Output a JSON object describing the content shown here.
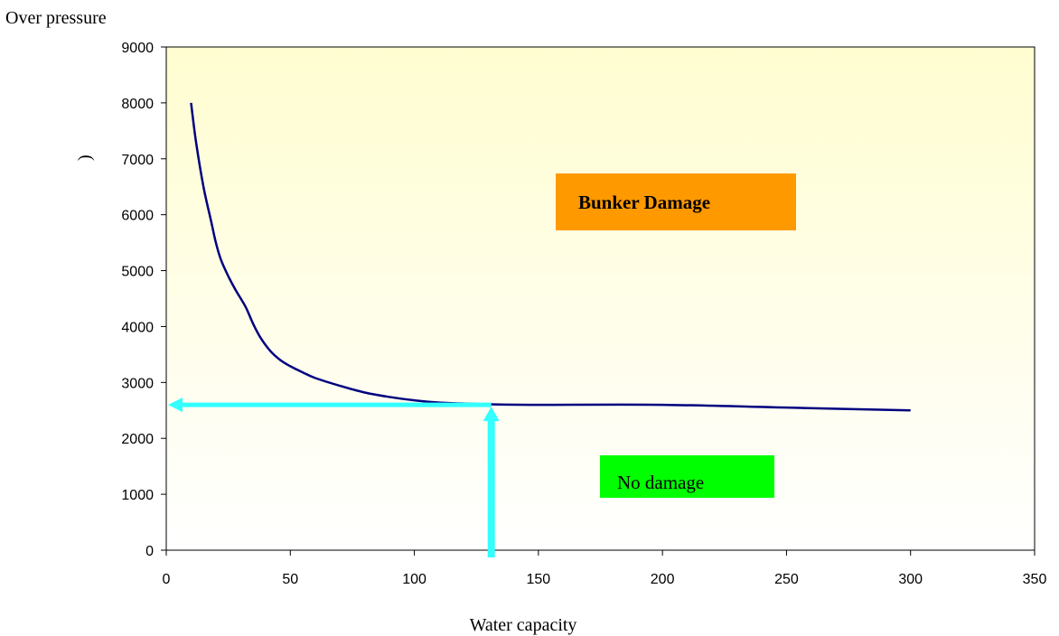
{
  "chart_data": {
    "type": "line",
    "ylabel": "Over pressure",
    "ylabel_glyph": ")",
    "xlabel": "Water capacity",
    "xlim": [
      0,
      350
    ],
    "ylim": [
      0,
      9000
    ],
    "x_ticks": [
      "0",
      "50",
      "100",
      "150",
      "200",
      "250",
      "300",
      "350"
    ],
    "y_ticks": [
      "0",
      "1000",
      "2000",
      "3000",
      "4000",
      "5000",
      "6000",
      "7000",
      "8000",
      "9000"
    ],
    "series": [
      {
        "x": [
          10,
          12,
          15,
          18,
          20,
          22,
          25,
          28,
          32,
          35,
          38,
          42,
          46,
          50,
          55,
          60,
          70,
          80,
          90,
          100,
          110,
          130,
          150,
          200,
          250,
          300
        ],
        "y": [
          8000,
          7300,
          6500,
          5900,
          5500,
          5200,
          4900,
          4650,
          4350,
          4050,
          3800,
          3560,
          3400,
          3290,
          3180,
          3080,
          2940,
          2820,
          2740,
          2680,
          2640,
          2610,
          2600,
          2600,
          2550,
          2500
        ]
      }
    ],
    "line_color": "#000080",
    "marker_color": "#33ffff",
    "marker_point": {
      "x": 131,
      "y": 2600
    },
    "regions": [
      {
        "label": "Bunker Damage",
        "color": "#ff9900"
      },
      {
        "label": "No damage",
        "color": "#00ff00"
      }
    ],
    "background_gradient": [
      "#fffdd0",
      "#ffffff"
    ],
    "grid": false,
    "legend": "none"
  }
}
